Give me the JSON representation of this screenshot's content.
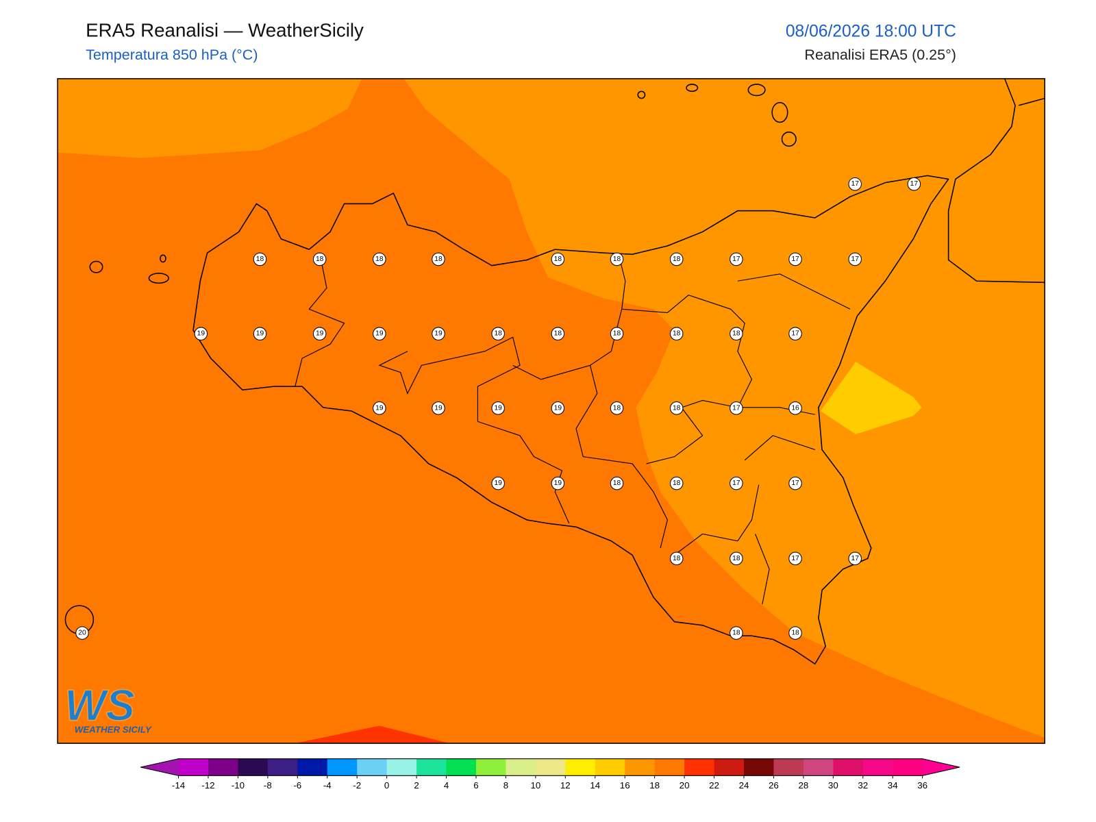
{
  "header": {
    "title": "ERA5 Reanalisi — WeatherSicily",
    "subtitle": "Temperatura 850 hPa (°C)",
    "datetime": "08/06/2026 18:00 UTC",
    "source": "Reanalisi ERA5 (0.25°)"
  },
  "stations": [
    17,
    17,
    18,
    18,
    18,
    18,
    18,
    18,
    18,
    17,
    17,
    17,
    19,
    19,
    19,
    19,
    19,
    18,
    18,
    18,
    18,
    18,
    17,
    19,
    19,
    19,
    19,
    18,
    18,
    17,
    16,
    19,
    19,
    18,
    18,
    17,
    17,
    18,
    18,
    17,
    17,
    18,
    18,
    20
  ],
  "logo": {
    "mark": "WS",
    "name": "WEATHER SICILY"
  },
  "colorbar": {
    "ticks": [
      -14,
      -12,
      -10,
      -8,
      -6,
      -4,
      -2,
      0,
      2,
      4,
      6,
      8,
      10,
      12,
      14,
      16,
      18,
      20,
      22,
      24,
      26,
      28,
      30,
      32,
      34,
      36
    ],
    "colors": [
      "#a213b0",
      "#c000c8",
      "#7e0088",
      "#2c0a52",
      "#3b1e86",
      "#0018a8",
      "#0096ff",
      "#6ccff6",
      "#98f3e6",
      "#1ce39a",
      "#00e050",
      "#8ef03a",
      "#d8ef8a",
      "#efe68a",
      "#ffee00",
      "#ffcc00",
      "#ff9600",
      "#ff7800",
      "#ff3300",
      "#cc1a10",
      "#780808",
      "#bd3a56",
      "#d0457f",
      "#e0106a",
      "#f5088a",
      "#ff0080",
      "#ff0090"
    ]
  }
}
